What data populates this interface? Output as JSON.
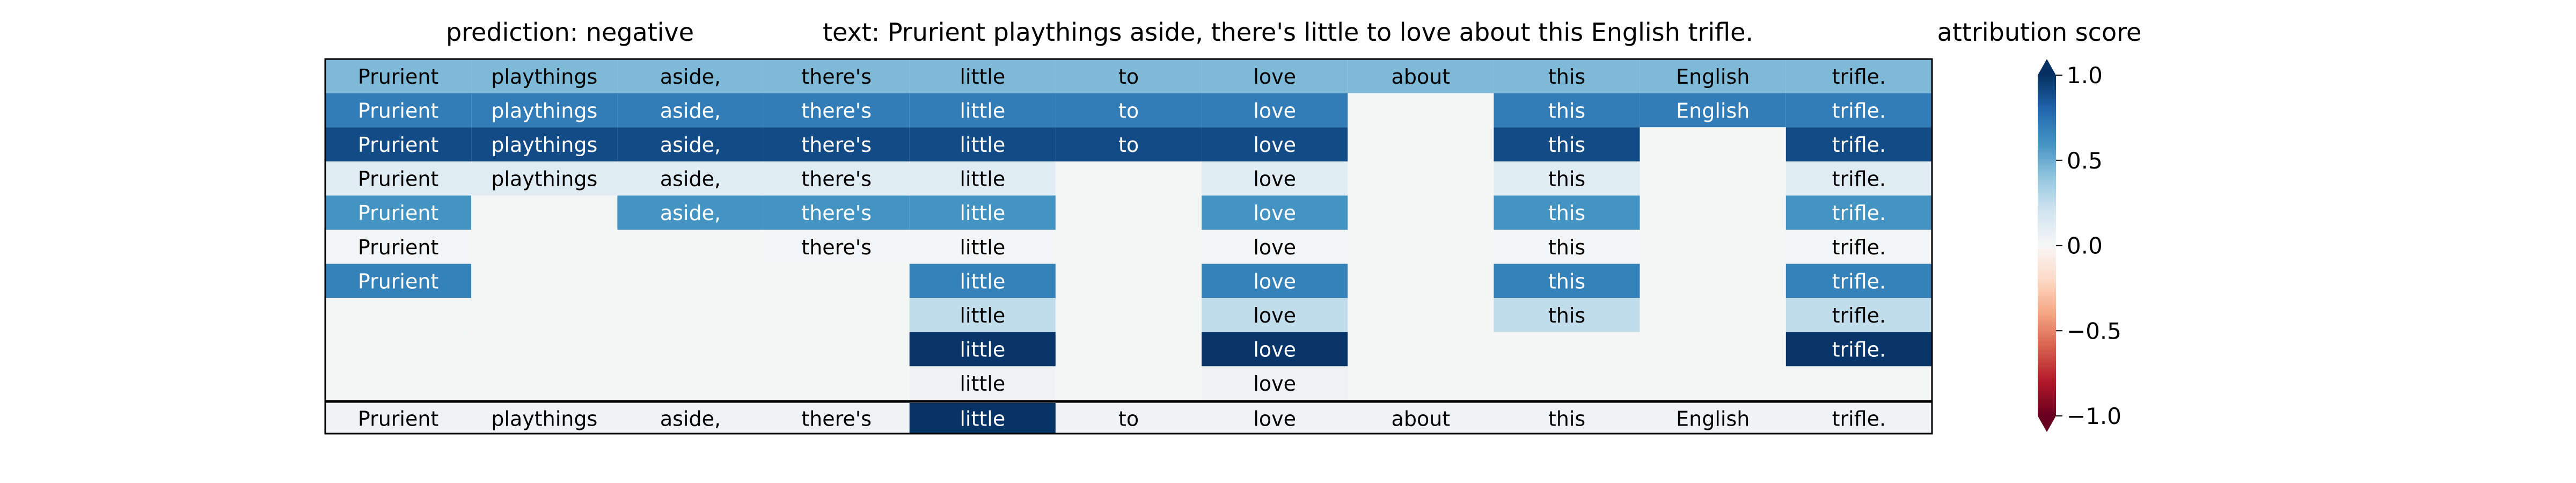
{
  "header": {
    "prediction_label": "prediction:  negative",
    "text_label": "text:  Prurient playthings aside, there's little to love about this English trifle."
  },
  "chart_data": {
    "type": "heatmap",
    "tokens": [
      "Prurient",
      "playthings",
      "aside,",
      "there's",
      "little",
      "to",
      "love",
      "about",
      "this",
      "English",
      "trifle."
    ],
    "rows": [
      [
        0.45,
        0.45,
        0.45,
        0.45,
        0.45,
        0.45,
        0.45,
        0.45,
        0.45,
        0.45,
        0.45
      ],
      [
        0.7,
        0.7,
        0.7,
        0.7,
        0.7,
        0.7,
        0.7,
        null,
        0.7,
        0.7,
        0.7
      ],
      [
        0.9,
        0.9,
        0.9,
        0.9,
        0.9,
        0.9,
        0.9,
        null,
        0.9,
        null,
        0.9
      ],
      [
        0.12,
        0.12,
        0.12,
        0.12,
        0.12,
        null,
        0.12,
        null,
        0.12,
        null,
        0.12
      ],
      [
        0.6,
        null,
        0.6,
        0.6,
        0.6,
        null,
        0.6,
        null,
        0.6,
        null,
        0.6
      ],
      [
        0.02,
        null,
        null,
        0.02,
        0.02,
        null,
        0.02,
        null,
        0.02,
        null,
        0.02
      ],
      [
        0.68,
        null,
        null,
        null,
        0.68,
        null,
        0.68,
        null,
        0.68,
        null,
        0.68
      ],
      [
        null,
        null,
        null,
        null,
        0.25,
        null,
        0.25,
        null,
        0.25,
        null,
        0.25
      ],
      [
        null,
        null,
        null,
        null,
        0.98,
        null,
        0.98,
        null,
        null,
        null,
        0.98
      ],
      [
        null,
        null,
        null,
        null,
        0.04,
        null,
        0.04,
        null,
        null,
        null,
        null
      ]
    ],
    "bottom_row": [
      0.04,
      0.04,
      0.04,
      0.04,
      0.99,
      0.04,
      0.04,
      0.04,
      0.04,
      0.04,
      0.04
    ],
    "colorbar": {
      "title": "attribution score",
      "range": [
        -1.0,
        1.0
      ],
      "ticks": [
        1.0,
        0.5,
        0.0,
        -0.5,
        -1.0
      ],
      "tick_labels": [
        "1.0",
        "0.5",
        "0.0",
        "−0.5",
        "−1.0"
      ],
      "colormap": "RdBu",
      "extend": "both"
    },
    "empty_cell_color": "#f4f6f5"
  }
}
